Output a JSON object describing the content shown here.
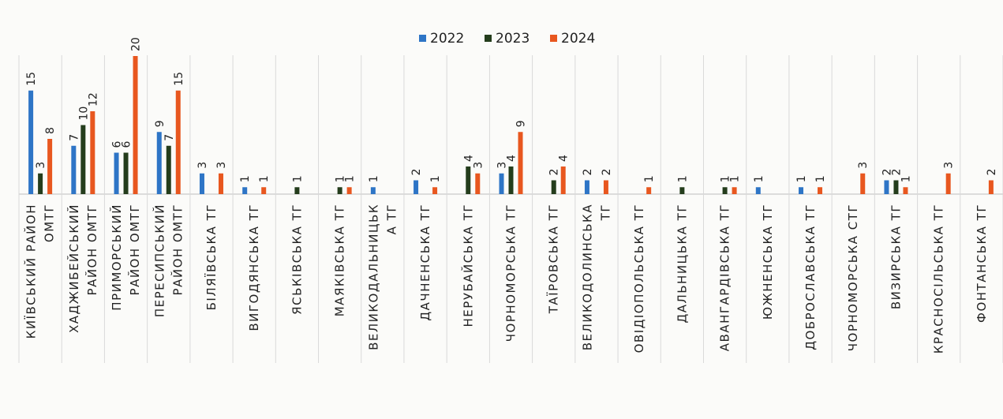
{
  "chart_data": {
    "type": "bar",
    "title": "",
    "xlabel": "",
    "ylabel": "",
    "ylim": [
      0,
      20
    ],
    "grid": "vertical category separators",
    "legend_position": "top",
    "categories": [
      [
        "КИЇВСЬКИЙ РАЙОН",
        "ОМТГ"
      ],
      [
        "ХАДЖИБЕЙСЬКИЙ",
        "РАЙОН ОМТГ"
      ],
      [
        "ПРИМОРСЬКИЙ",
        "РАЙОН ОМТГ"
      ],
      [
        "ПЕРЕСИПСЬКИЙ",
        "РАЙОН ОМТГ"
      ],
      [
        "БІЛЯЇВСЬКА ТГ"
      ],
      [
        "ВИГОДЯНСЬКА ТГ"
      ],
      [
        "ЯСЬКІВСЬКА ТГ"
      ],
      [
        "МАЯКІВСЬКА ТГ"
      ],
      [
        "ВЕЛИКОДАЛЬНИЦЬК",
        "А ТГ"
      ],
      [
        "ДАЧНЕНСЬКА ТГ"
      ],
      [
        "НЕРУБАЙСЬКА ТГ"
      ],
      [
        "ЧОРНОМОРСЬКА ТГ"
      ],
      [
        "ТАЇРОВСЬКА ТГ"
      ],
      [
        "ВЕЛИКОДОЛИНСЬКА",
        "ТГ"
      ],
      [
        "ОВІДІОПОЛЬСЬКА ТГ"
      ],
      [
        "ДАЛЬНИЦЬКА ТГ"
      ],
      [
        "АВАНГАРДІВСЬКА ТГ"
      ],
      [
        "ЮЖНЕНСЬКА ТГ"
      ],
      [
        "ДОБРОСЛАВСЬКА ТГ"
      ],
      [
        "ЧОРНОМОРСЬКА СТГ"
      ],
      [
        "ВИЗИРСЬКА ТГ"
      ],
      [
        "КРАСНОСІЛЬСЬКА ТГ"
      ],
      [
        "ФОНТАНСЬКА ТГ"
      ]
    ],
    "series": [
      {
        "name": "2022",
        "color": "#2e75c6",
        "values": [
          15,
          7,
          6,
          9,
          3,
          1,
          0,
          0,
          1,
          2,
          0,
          3,
          0,
          2,
          0,
          0,
          0,
          1,
          1,
          0,
          2,
          0,
          0
        ]
      },
      {
        "name": "2023",
        "color": "#243d1c",
        "values": [
          3,
          10,
          6,
          7,
          0,
          0,
          1,
          1,
          0,
          0,
          4,
          4,
          2,
          0,
          0,
          1,
          1,
          0,
          0,
          0,
          2,
          0,
          0
        ]
      },
      {
        "name": "2024",
        "color": "#e8571f",
        "values": [
          8,
          12,
          20,
          15,
          3,
          1,
          0,
          1,
          0,
          1,
          3,
          9,
          4,
          2,
          1,
          0,
          1,
          0,
          1,
          3,
          1,
          3,
          2
        ]
      }
    ]
  }
}
